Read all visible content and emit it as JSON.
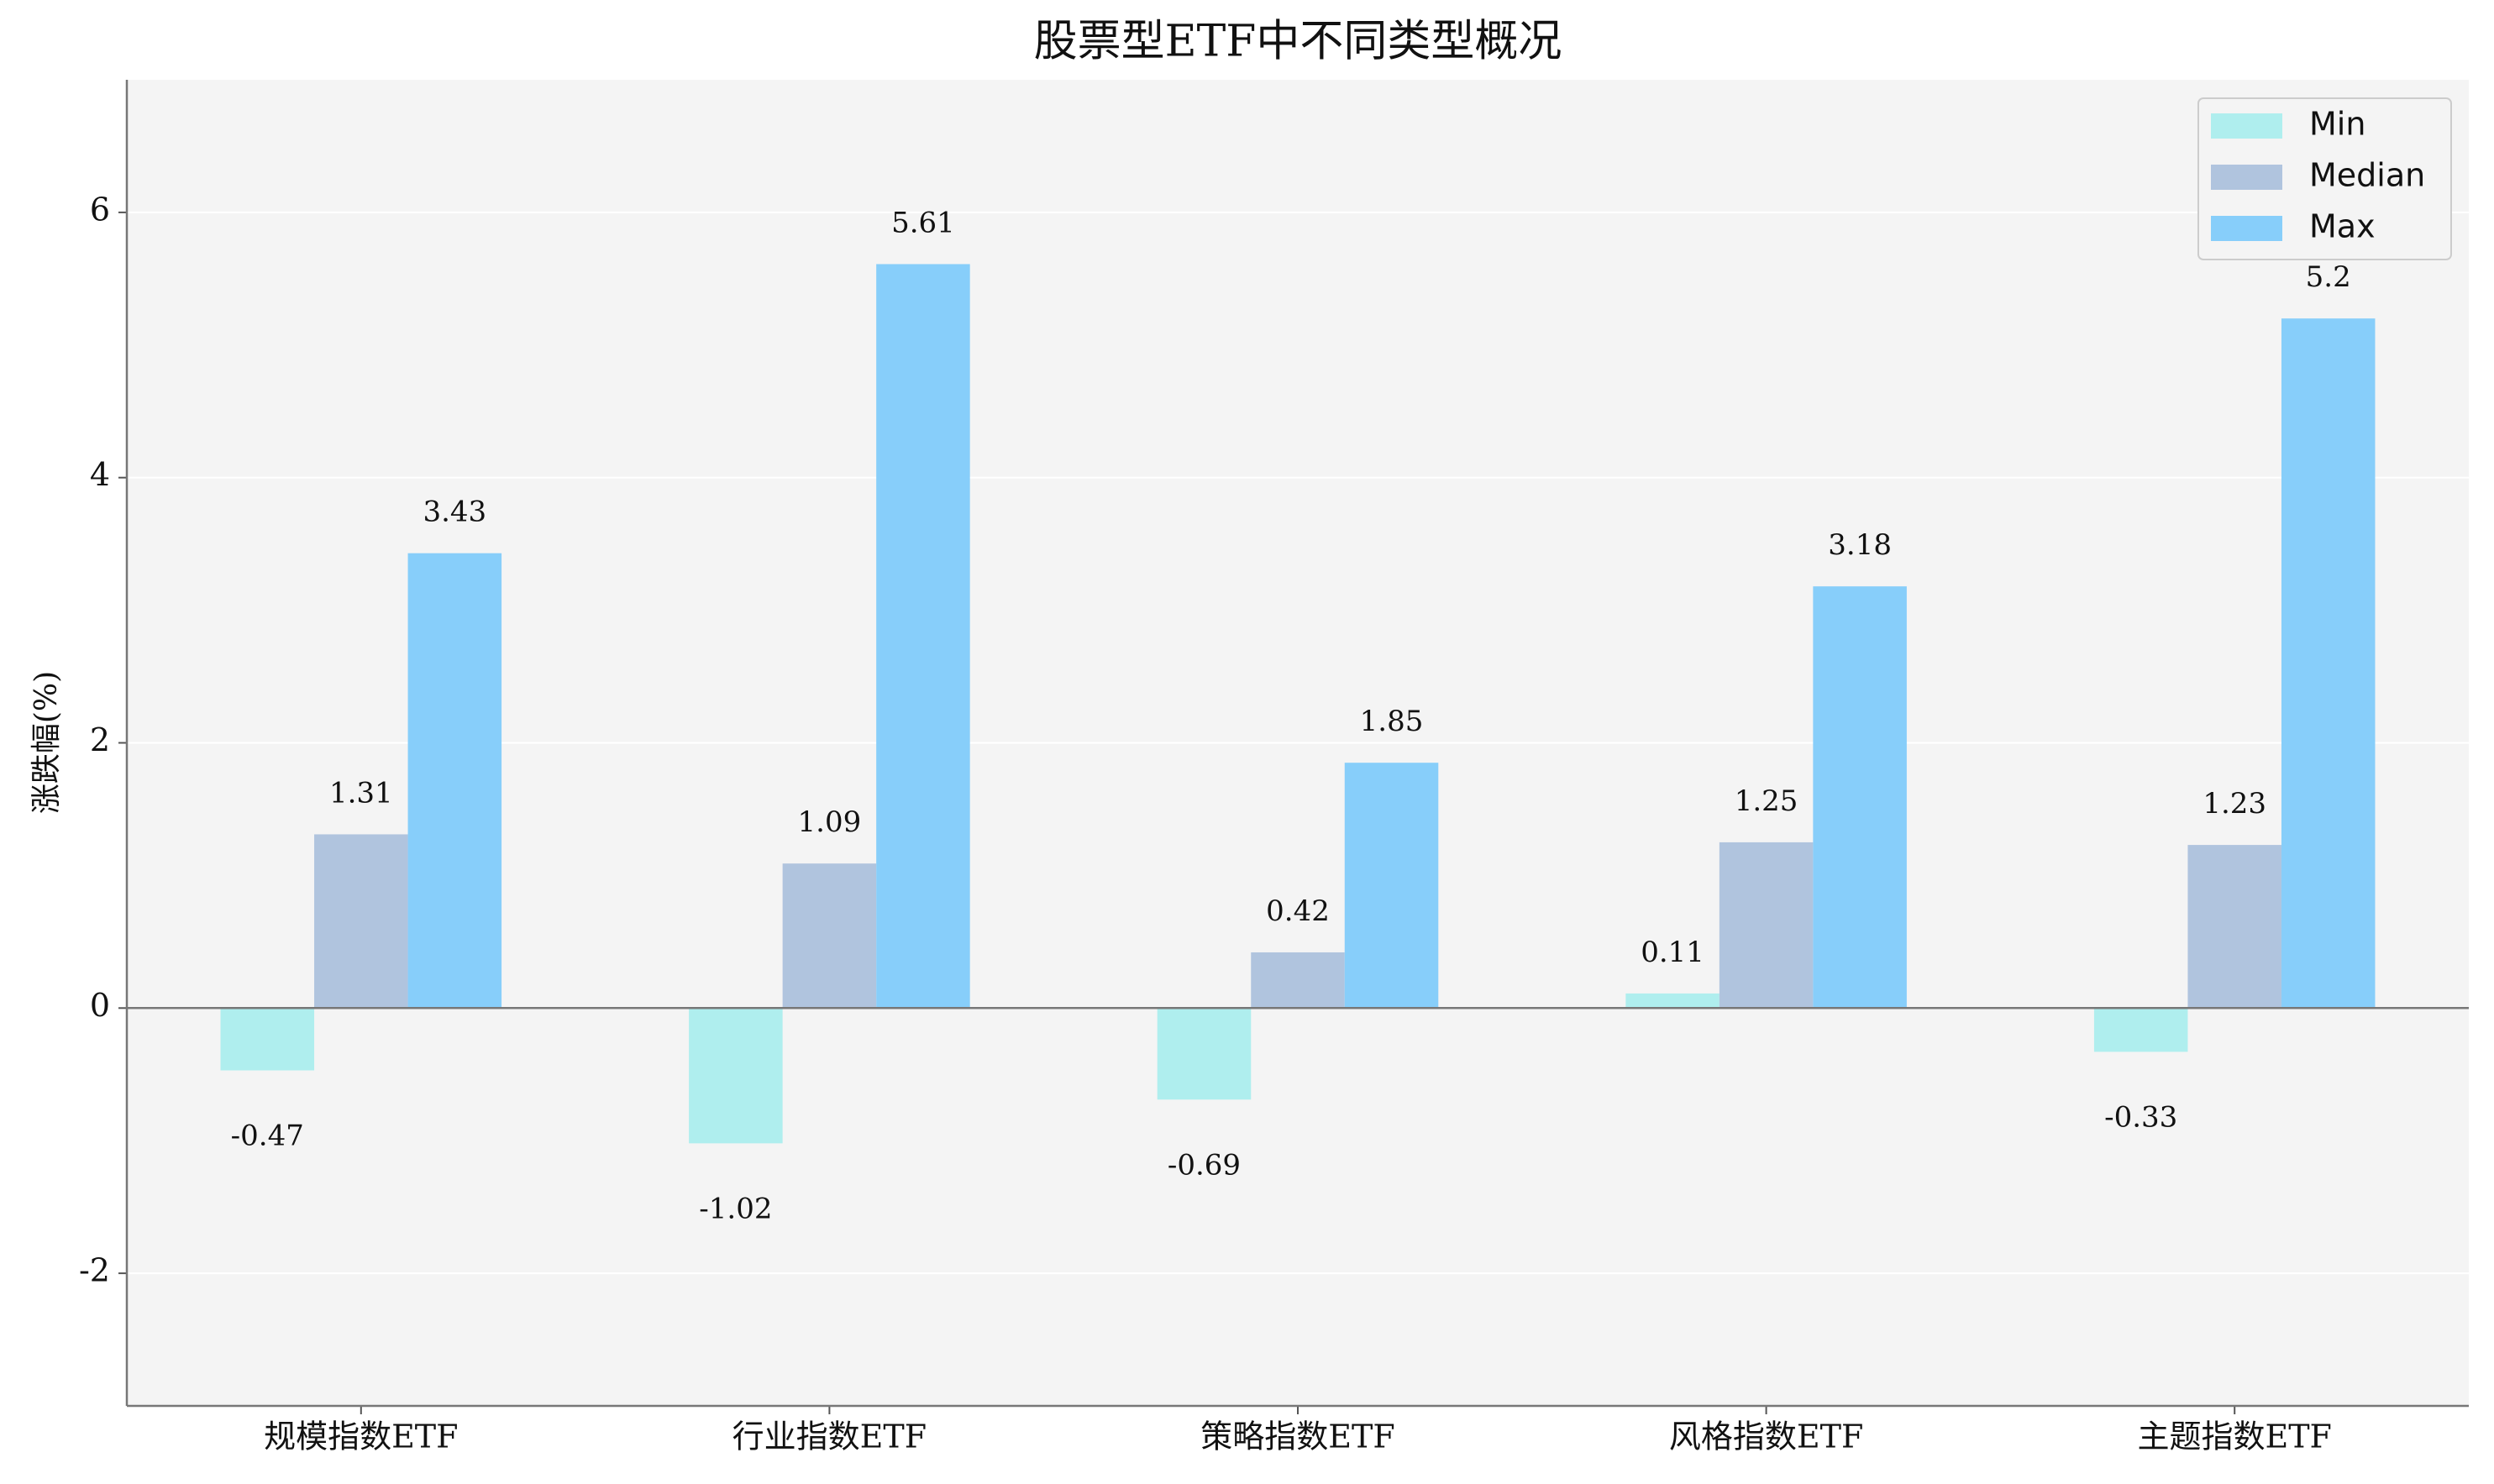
{
  "chart_data": {
    "type": "bar",
    "title": "股票型ETF中不同类型概况",
    "y_label": "涨跌幅(%)",
    "categories": [
      "规模指数ETF",
      "行业指数ETF",
      "策略指数ETF",
      "风格指数ETF",
      "主题指数ETF"
    ],
    "series": [
      {
        "name": "Min",
        "color": "#afeeee",
        "values": [
          -0.47,
          -1.02,
          -0.69,
          0.11,
          -0.33
        ]
      },
      {
        "name": "Median",
        "color": "#b0c4de",
        "values": [
          1.31,
          1.09,
          0.42,
          1.25,
          1.23
        ]
      },
      {
        "name": "Max",
        "color": "#87cefa",
        "values": [
          3.43,
          5.61,
          1.85,
          3.18,
          5.2
        ]
      }
    ],
    "ylim": [
      -3,
      7
    ],
    "yticks": [
      -2,
      0,
      2,
      4,
      6
    ],
    "grid": true,
    "legend": "upper right"
  }
}
